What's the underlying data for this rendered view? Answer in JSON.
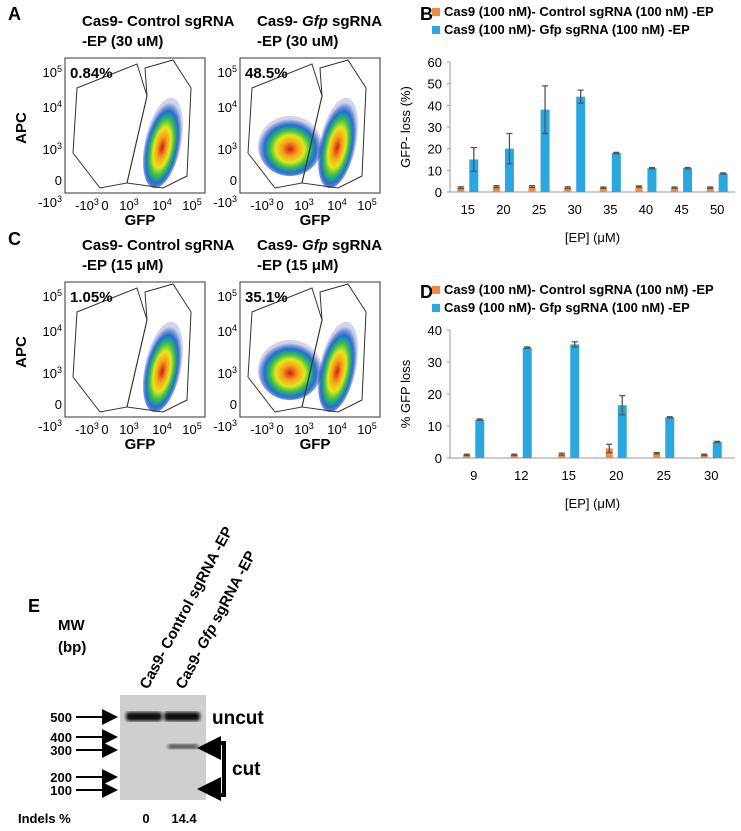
{
  "panel_labels": [
    "A",
    "B",
    "C",
    "D",
    "E"
  ],
  "flow": {
    "y_axis_label": "APC",
    "x_axis_label": "GFP",
    "yticks": [
      {
        "base": "10",
        "sup": "5"
      },
      {
        "base": "10",
        "sup": "4"
      },
      {
        "base": "10",
        "sup": "3"
      },
      {
        "base": "0"
      },
      {
        "base": "-10",
        "sup": "3"
      }
    ],
    "xticks": [
      {
        "base": "-10",
        "sup": "3"
      },
      {
        "base": "0"
      },
      {
        "base": "10",
        "sup": "3"
      },
      {
        "base": "10",
        "sup": "4"
      },
      {
        "base": "10",
        "sup": "5"
      }
    ],
    "panels": [
      {
        "plots": [
          {
            "title": [
              [
                "Cas9- Control sgRNA"
              ],
              [
                "-EP (30 uM)"
              ]
            ],
            "percent": "0.84%"
          },
          {
            "title": [
              [
                "Cas9- ",
                "Gfp",
                " sgRNA"
              ],
              [
                "-EP (30 uM)"
              ]
            ],
            "percent": "48.5%"
          }
        ]
      },
      {
        "plots": [
          {
            "title": [
              [
                "Cas9- Control sgRNA"
              ],
              [
                "-EP (15 μM)"
              ]
            ],
            "percent": "1.05%"
          },
          {
            "title": [
              [
                "Cas9- ",
                "Gfp",
                " sgRNA"
              ],
              [
                "-EP (15 μM)"
              ]
            ],
            "percent": "35.1%"
          }
        ]
      }
    ]
  },
  "chart_data": [
    {
      "type": "bar",
      "y_axis_label": "GFP- loss (%)",
      "x_axis_label": "[EP] (μM)",
      "categories": [
        15,
        20,
        25,
        30,
        35,
        40,
        45,
        50
      ],
      "series": [
        {
          "name": "Cas9 (100 nM)- Control sgRNA (100 nM) -EP",
          "color": "#f08a3c",
          "values": [
            2,
            2.5,
            2.5,
            2,
            2,
            2.5,
            2,
            2
          ],
          "errors": [
            0.4,
            0.4,
            0.4,
            0.4,
            0.3,
            0.3,
            0.3,
            0.3
          ]
        },
        {
          "name": "Cas9 (100 nM)- Gfp sgRNA (100 nM) -EP",
          "color": "#2aa7df",
          "values": [
            15,
            20,
            38,
            44,
            18,
            11,
            11,
            8.5
          ],
          "errors": [
            5.5,
            7,
            11,
            3,
            0.3,
            0.3,
            0.3,
            0.3
          ]
        }
      ],
      "ylim": [
        0,
        60
      ],
      "yticks": [
        0,
        10,
        20,
        30,
        40,
        50,
        60
      ]
    },
    {
      "type": "bar",
      "y_axis_label": "% GFP loss",
      "x_axis_label": "[EP] (μM)",
      "categories": [
        9,
        12,
        15,
        20,
        25,
        30
      ],
      "series": [
        {
          "name": "Cas9 (100 nM)- Control sgRNA (100 nM) -EP",
          "color": "#f08a3c",
          "values": [
            1,
            1,
            1.2,
            3,
            1.5,
            1
          ],
          "errors": [
            0.2,
            0.2,
            0.3,
            1.3,
            0.2,
            0.2
          ]
        },
        {
          "name": "Cas9 (100 nM)- Gfp sgRNA (100 nM) -EP",
          "color": "#2aa7df",
          "values": [
            12,
            34.5,
            35.5,
            16.5,
            12.7,
            5
          ],
          "errors": [
            0.2,
            0.2,
            0.8,
            3,
            0.2,
            0.2
          ]
        }
      ],
      "ylim": [
        0,
        40
      ],
      "yticks": [
        0,
        10,
        20,
        30,
        40
      ]
    }
  ],
  "gel": {
    "mw_label": [
      "MW",
      "(bp)"
    ],
    "markers": [
      500,
      400,
      300,
      200,
      100
    ],
    "lanes": [
      [
        "Cas9- Control sgRNA -EP"
      ],
      [
        "Cas9- ",
        "Gfp",
        " sgRNA -EP"
      ]
    ],
    "uncut": "uncut",
    "cut": "cut",
    "indels_label": "Indels %",
    "indels": [
      0,
      14.4
    ]
  }
}
